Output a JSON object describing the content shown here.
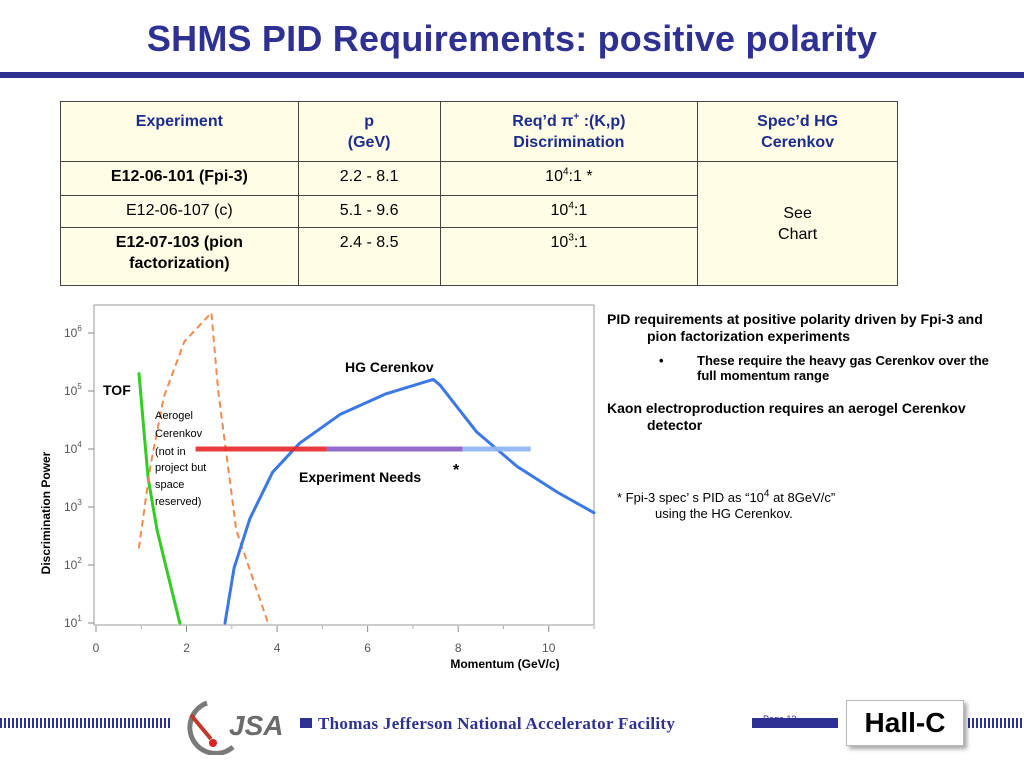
{
  "slide": {
    "title": "SHMS PID Requirements: positive polarity"
  },
  "table": {
    "headers": [
      {
        "line1": "Experiment",
        "line2": ""
      },
      {
        "line1": "p",
        "line2": "(GeV)"
      },
      {
        "line1": "Req’d π",
        "sup": "+",
        "line1b": " :(K,p)",
        "line2": "Discrimination"
      },
      {
        "line1": "Spec’d HG",
        "line2": "Cerenkov"
      }
    ],
    "rows": [
      {
        "experiment": "E12-06-101 (Fpi-3)",
        "p": "2.2 - 8.1",
        "base": "10",
        "exp": "4",
        "ratio": ":1 *"
      },
      {
        "experiment": "E12-06-107 (c)",
        "p": "5.1 - 9.6",
        "base": "10",
        "exp": "4",
        "ratio": ":1"
      },
      {
        "experiment": "E12-07-103 (pion factorization)",
        "p": "2.4 - 8.5",
        "base": "10",
        "exp": "3",
        "ratio": ":1"
      }
    ],
    "spec_cell": {
      "line1": "See",
      "line2": "Chart"
    }
  },
  "chart_data": {
    "type": "line",
    "title": "",
    "xlabel": "Momentum (GeV/c)",
    "ylabel": "Discrimination Power",
    "xlim": [
      0,
      11
    ],
    "ylim_log10": [
      1,
      6.5
    ],
    "x_ticks": [
      "0",
      "2",
      "4",
      "6",
      "8",
      "10"
    ],
    "y_ticks": [
      {
        "base": "10",
        "exp": "1",
        "value": 1
      },
      {
        "base": "10",
        "exp": "2",
        "value": 2
      },
      {
        "base": "10",
        "exp": "3",
        "value": 3
      },
      {
        "base": "10",
        "exp": "4",
        "value": 4
      },
      {
        "base": "10",
        "exp": "5",
        "value": 5
      },
      {
        "base": "10",
        "exp": "6",
        "value": 6
      }
    ],
    "series": [
      {
        "name": "TOF",
        "color": "#33cc22",
        "dash": false,
        "points": [
          [
            0.95,
            5.3
          ],
          [
            1.05,
            4.4
          ],
          [
            1.15,
            3.5
          ],
          [
            1.35,
            2.6
          ],
          [
            1.6,
            1.8
          ],
          [
            1.85,
            1.0
          ]
        ]
      },
      {
        "name": "Aerogel Cerenkov (not in project but space reserved)",
        "color": "#f08a4b",
        "dash": true,
        "points": [
          [
            0.95,
            2.3
          ],
          [
            1.2,
            3.7
          ],
          [
            1.5,
            4.9
          ],
          [
            1.95,
            5.85
          ],
          [
            2.55,
            6.35
          ],
          [
            2.7,
            5.0
          ],
          [
            3.1,
            2.6
          ],
          [
            3.8,
            1.0
          ]
        ]
      },
      {
        "name": "HG Cerenkov",
        "color": "#3b78e7",
        "dash": false,
        "points": [
          [
            2.85,
            1.0
          ],
          [
            3.05,
            1.95
          ],
          [
            3.4,
            2.8
          ],
          [
            3.9,
            3.6
          ],
          [
            4.5,
            4.1
          ],
          [
            5.4,
            4.6
          ],
          [
            6.4,
            4.95
          ],
          [
            7.45,
            5.2
          ],
          [
            7.6,
            5.1
          ],
          [
            8.4,
            4.3
          ],
          [
            9.3,
            3.7
          ],
          [
            10.2,
            3.25
          ],
          [
            11.0,
            2.9
          ]
        ]
      },
      {
        "name": "Experiment Needs",
        "color_red": "#e8262b",
        "color_purple": "#8a5cc7",
        "color_blue": "#8fb4f2",
        "segments": [
          {
            "x0": 2.2,
            "x1": 5.1,
            "y": 4.0,
            "color": "#e8262b"
          },
          {
            "x0": 5.1,
            "x1": 8.1,
            "y": 4.0,
            "color": "#8a5cc7"
          },
          {
            "x0": 8.1,
            "x1": 9.6,
            "y": 4.0,
            "color": "#8fb4f2"
          }
        ]
      }
    ],
    "annotations": {
      "tof": "TOF",
      "aerogel": [
        "Aerogel",
        "Cerenkov",
        "(not in",
        "project but",
        "space",
        "reserved)"
      ],
      "hg": "HG Cerenkov",
      "needs": "Experiment Needs",
      "star": "*"
    }
  },
  "notes": {
    "para1": "PID requirements at positive polarity driven by Fpi-3 and pion factorization experiments",
    "bullet_marker": "•",
    "bullet1": "These require the heavy gas Cerenkov over the full momentum range",
    "para2": "Kaon electroproduction requires an aerogel Cerenkov detector",
    "footnote_pre": "* Fpi-3 spec’ s PID as “10",
    "footnote_exp": "4",
    "footnote_post": " at 8GeV/c”",
    "footnote_line2": "using the HG Cerenkov."
  },
  "footer": {
    "logo_text": "JSA",
    "lab_name": "Thomas Jefferson National Accelerator Facility",
    "page": "Page 13",
    "hall": "Hall-C"
  },
  "colors": {
    "title_blue": "#2e3192",
    "table_header_text": "#1c2c8c",
    "table_bg": "#fffde6"
  }
}
